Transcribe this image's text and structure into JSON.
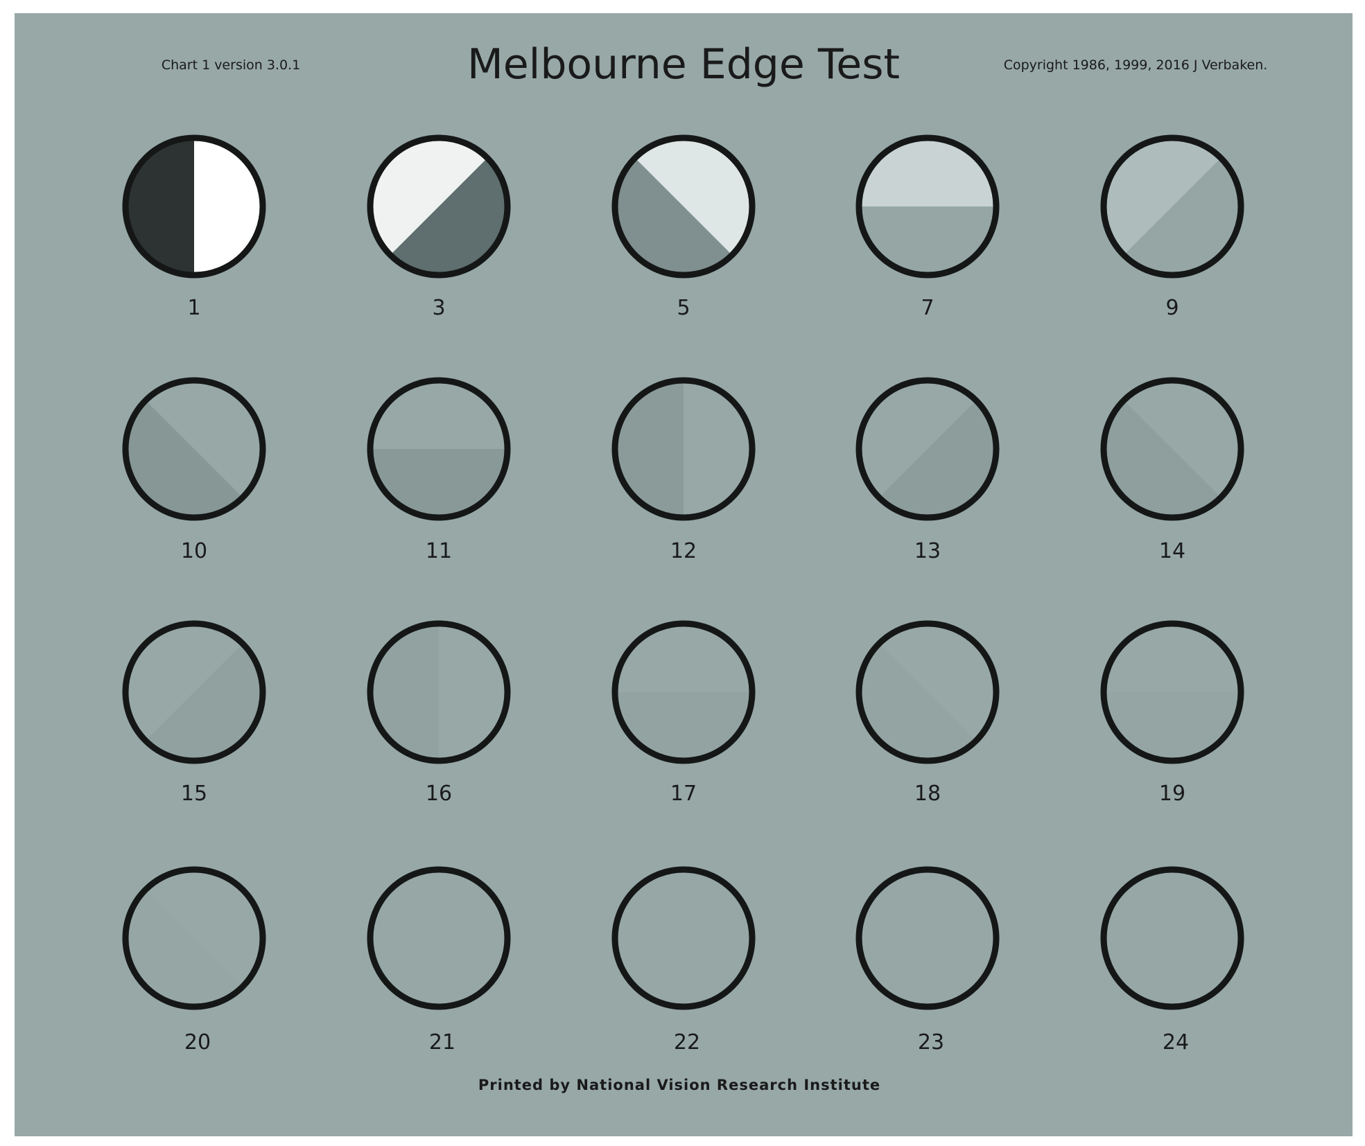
{
  "header": {
    "title": "Melbourne Edge Test",
    "chart_version": "Chart 1 version 3.0.1",
    "copyright": "Copyright 1986, 1999, 2016 J Verbaken."
  },
  "footer": {
    "printer": "Printed by National Vision Research Institute"
  },
  "colors": {
    "background": "#97a8a7",
    "ring": "#151717",
    "page": "#ffffff"
  },
  "plates": [
    {
      "label": "1",
      "edge": "vertical",
      "a": "#2d3333",
      "b": "#ffffff"
    },
    {
      "label": "3",
      "edge": "diag-up",
      "a": "#f0f2f2",
      "b": "#5f6e6e"
    },
    {
      "label": "5",
      "edge": "diag-down",
      "a": "#dfe6e6",
      "b": "#808f8f"
    },
    {
      "label": "7",
      "edge": "horizontal",
      "a": "#c9d3d3",
      "b": "#95a6a5"
    },
    {
      "label": "9",
      "edge": "diag-up",
      "a": "#aebdbc",
      "b": "#95a6a5"
    },
    {
      "label": "10",
      "edge": "diag-down",
      "a": "#97a8a7",
      "b": "#869796"
    },
    {
      "label": "11",
      "edge": "horizontal",
      "a": "#97a8a7",
      "b": "#889998"
    },
    {
      "label": "12",
      "edge": "vertical",
      "a": "#8a9b9a",
      "b": "#97a8a7"
    },
    {
      "label": "13",
      "edge": "diag-up",
      "a": "#97a8a7",
      "b": "#8c9d9c"
    },
    {
      "label": "14",
      "edge": "diag-down",
      "a": "#97a8a7",
      "b": "#8e9f9e"
    },
    {
      "label": "15",
      "edge": "diag-up",
      "a": "#97a8a7",
      "b": "#90a1a0"
    },
    {
      "label": "16",
      "edge": "vertical",
      "a": "#91a2a1",
      "b": "#97a8a7"
    },
    {
      "label": "17",
      "edge": "horizontal",
      "a": "#97a8a7",
      "b": "#92a3a2"
    },
    {
      "label": "18",
      "edge": "diag-down",
      "a": "#97a8a7",
      "b": "#93a4a3"
    },
    {
      "label": "19",
      "edge": "horizontal",
      "a": "#97a8a7",
      "b": "#94a5a4"
    },
    {
      "label": "20",
      "edge": "diag-down",
      "a": "#97a8a7",
      "b": "#95a6a5"
    },
    {
      "label": "21",
      "edge": "none",
      "a": "#96a7a6",
      "b": "#96a7a6"
    },
    {
      "label": "22",
      "edge": "none",
      "a": "#96a7a6",
      "b": "#96a7a6"
    },
    {
      "label": "23",
      "edge": "none",
      "a": "#96a7a6",
      "b": "#96a7a6"
    },
    {
      "label": "24",
      "edge": "none",
      "a": "#96a7a6",
      "b": "#96a7a6"
    }
  ]
}
